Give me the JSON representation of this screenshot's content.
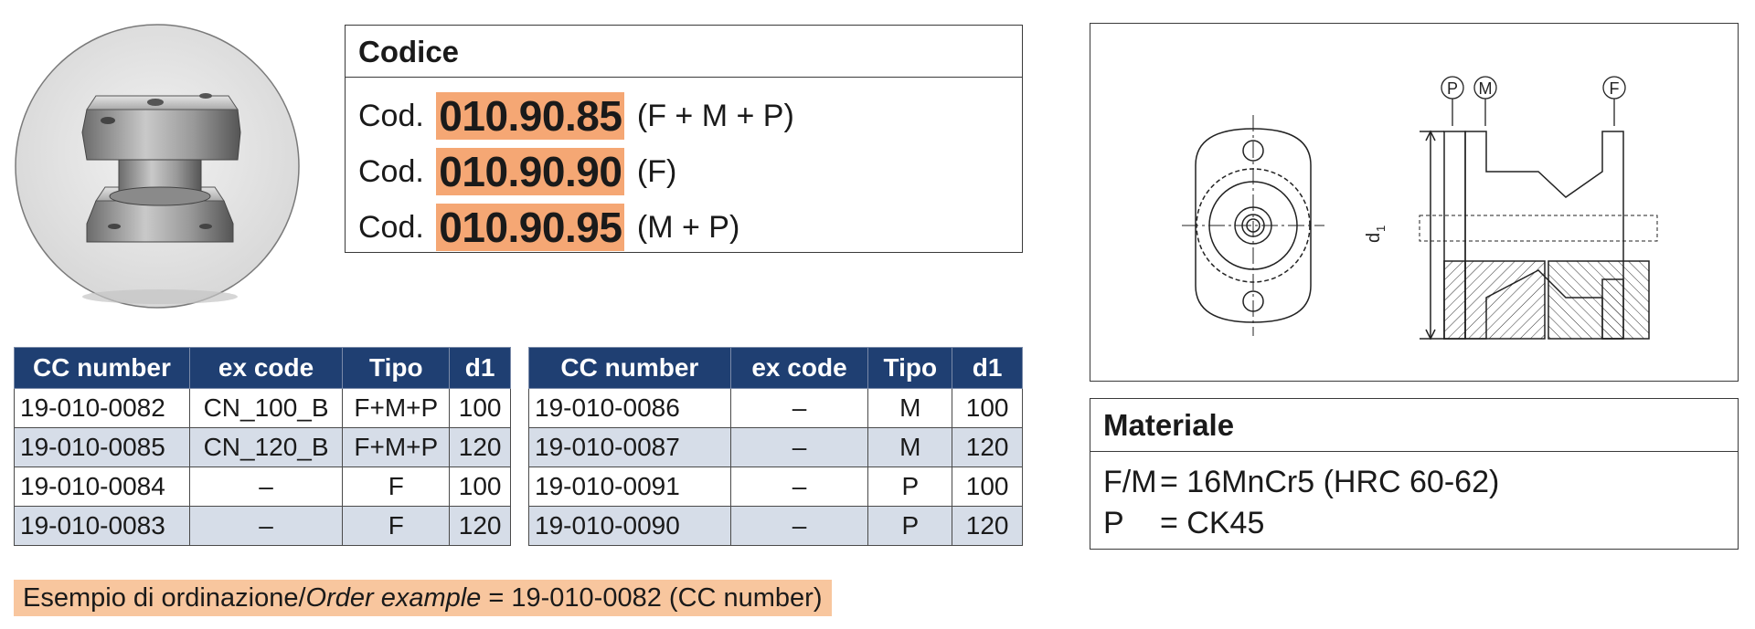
{
  "codice": {
    "header": "Codice",
    "rows": [
      {
        "prefix": "Cod.",
        "code": "010.90.85",
        "suffix": "(F + M + P)"
      },
      {
        "prefix": "Cod.",
        "code": "010.90.90",
        "suffix": "(F)"
      },
      {
        "prefix": "Cod.",
        "code": "010.90.95",
        "suffix": "(M + P)"
      }
    ]
  },
  "table_left": {
    "headers": [
      "CC number",
      "ex code",
      "Tipo",
      "d1"
    ],
    "rows": [
      [
        "19-010-0082",
        "CN_100_B",
        "F+M+P",
        "100"
      ],
      [
        "19-010-0085",
        "CN_120_B",
        "F+M+P",
        "120"
      ],
      [
        "19-010-0084",
        "–",
        "F",
        "100"
      ],
      [
        "19-010-0083",
        "–",
        "F",
        "120"
      ]
    ]
  },
  "table_right": {
    "headers": [
      "CC number",
      "ex code",
      "Tipo",
      "d1"
    ],
    "rows": [
      [
        "19-010-0086",
        "–",
        "M",
        "100"
      ],
      [
        "19-010-0087",
        "–",
        "M",
        "120"
      ],
      [
        "19-010-0091",
        "–",
        "P",
        "100"
      ],
      [
        "19-010-0090",
        "–",
        "P",
        "120"
      ]
    ]
  },
  "drawing": {
    "callouts": [
      "P",
      "M",
      "F"
    ],
    "dimension_label": "d",
    "dimension_sub": "1"
  },
  "materiale": {
    "header": "Materiale",
    "lines": [
      {
        "key": "F/M",
        "value": "= 16MnCr5 (HRC 60-62)"
      },
      {
        "key": "P",
        "value": "= CK45"
      }
    ]
  },
  "order_example": {
    "text_a": "Esempio di ordinazione/",
    "text_b": "Order example",
    "text_c": " = 19-010-0082 (CC number)"
  },
  "colors": {
    "header_blue": "#1f3f72",
    "code_highlight": "#f5a774",
    "order_highlight": "#f8c69e",
    "alt_row": "#d6dde8"
  }
}
